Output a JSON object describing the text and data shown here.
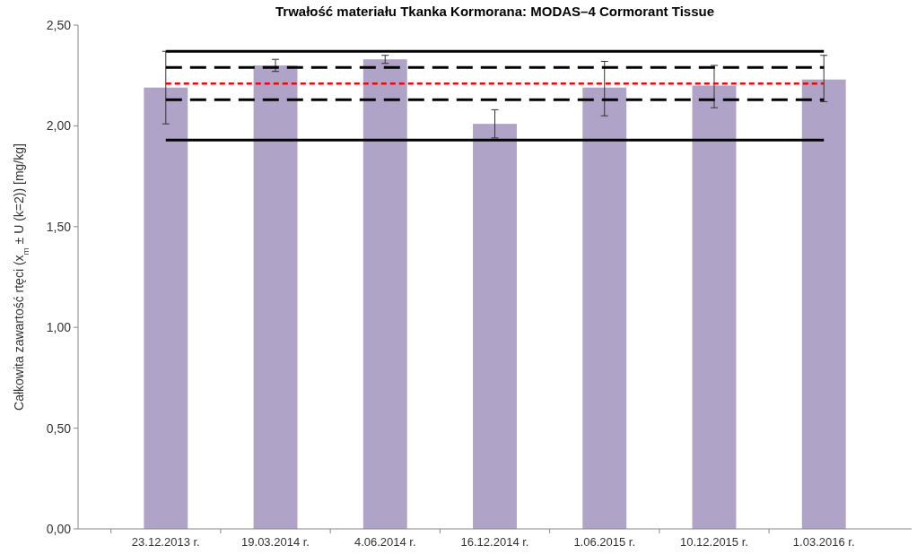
{
  "chart_data": {
    "type": "bar",
    "title": "Trwałość materiału Tkanka Kormorana: MODAS–4 Cormorant Tissue",
    "ylabel": "Całkowita zawartość rtęci (x$_{m}$ ± U (k=2)) [mg/kg]",
    "categories": [
      "23.12.2013 r.",
      "19.03.2014 r.",
      "4.06.2014 r.",
      "16.12.2014 r.",
      "1.06.2015 r.",
      "10.12.2015 r.",
      "1.03.2016 r."
    ],
    "values": [
      2.19,
      2.3,
      2.33,
      2.01,
      2.19,
      2.2,
      2.23
    ],
    "errors": [
      [
        2.01,
        2.37
      ],
      [
        2.27,
        2.33
      ],
      [
        2.31,
        2.35
      ],
      [
        1.94,
        2.08
      ],
      [
        2.05,
        2.32
      ],
      [
        2.09,
        2.3
      ],
      [
        2.12,
        2.35
      ]
    ],
    "color": "#b0a3c8",
    "ylim": [
      0,
      2.5
    ],
    "yticks": [
      {
        "value": 0,
        "label": "0,00"
      },
      {
        "value": 0.5,
        "label": "0,50"
      },
      {
        "value": 1,
        "label": "1,00"
      },
      {
        "value": 1.5,
        "label": "1,50"
      },
      {
        "value": 2,
        "label": "2,00"
      },
      {
        "value": 2.5,
        "label": "2,50"
      }
    ],
    "ref_lines": [
      {
        "axis": "y",
        "value": 2.37,
        "color": "#000000",
        "line_style": "solid"
      },
      {
        "axis": "y",
        "value": 2.29,
        "color": "#000000",
        "line_style": "dashed"
      },
      {
        "axis": "y",
        "value": 2.21,
        "color": "#ff0000",
        "line_style": "dotted"
      },
      {
        "axis": "y",
        "value": 2.13,
        "color": "#000000",
        "line_style": "dashed"
      },
      {
        "axis": "y",
        "value": 1.93,
        "color": "#000000",
        "line_style": "solid"
      }
    ],
    "grid": false
  }
}
